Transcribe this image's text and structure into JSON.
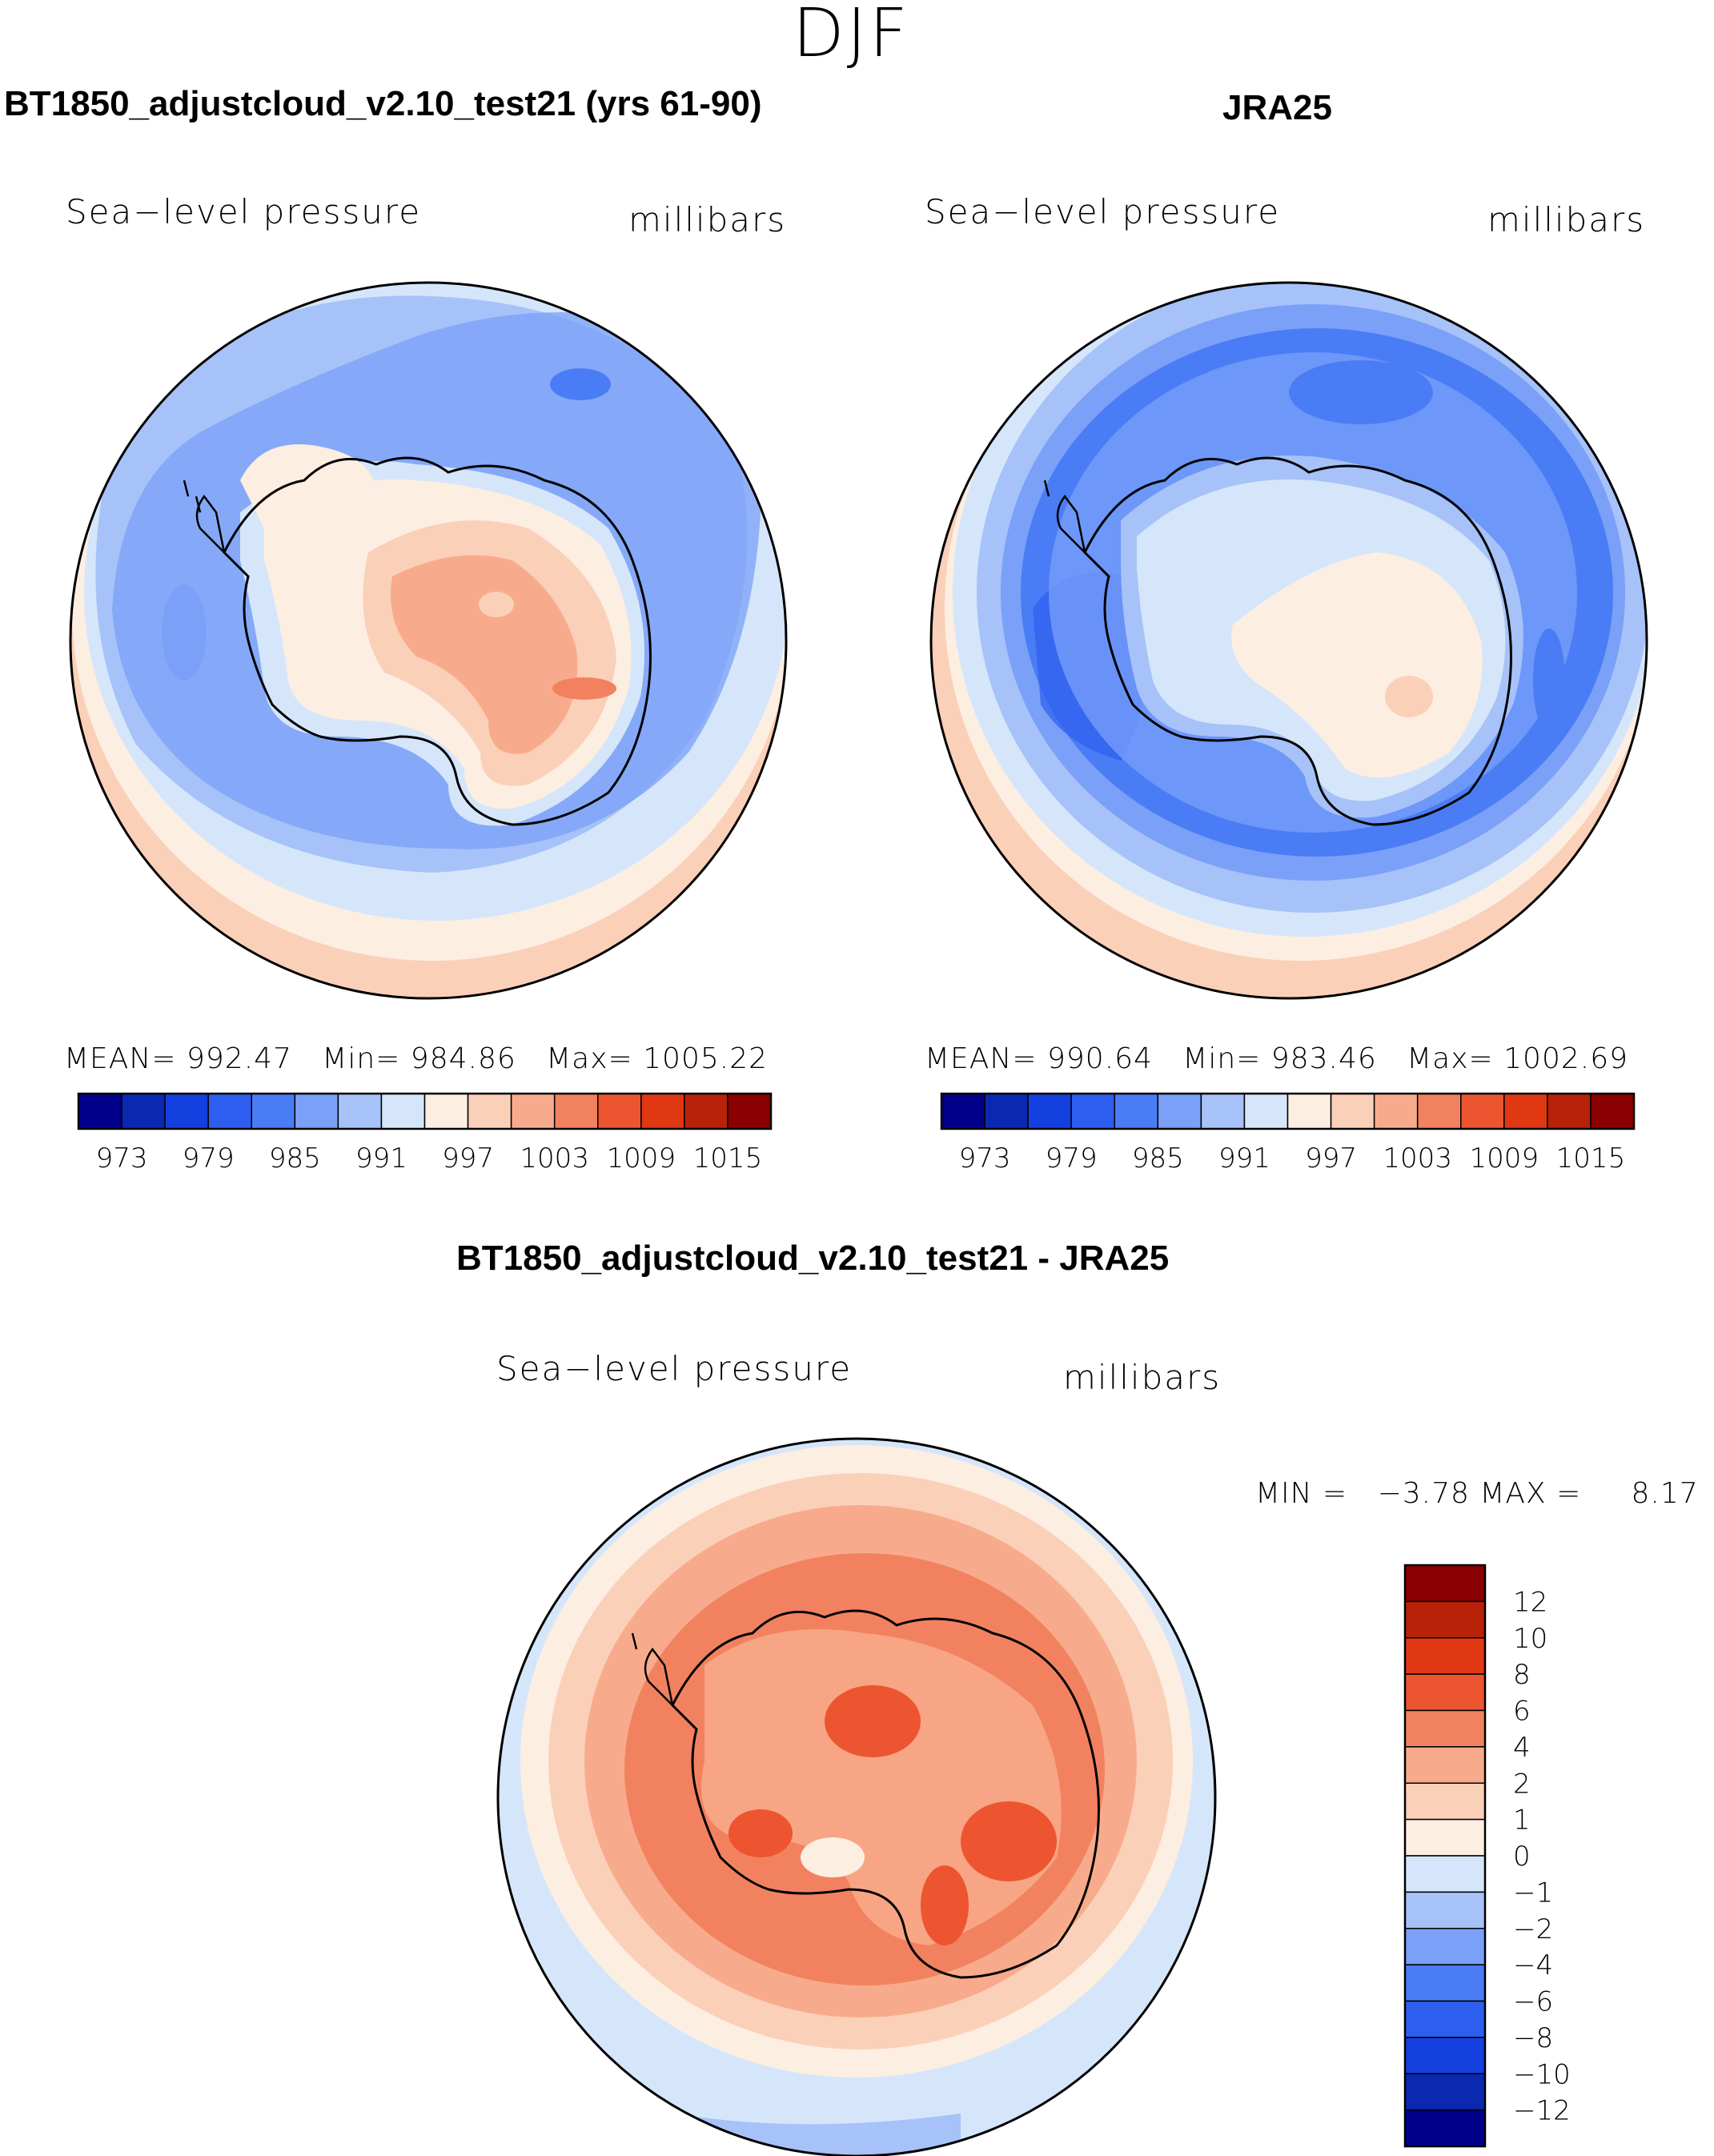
{
  "figure": {
    "season": "DJF",
    "left_panel": {
      "title": "BT1850_adjustcloud_v2.10_test21 (yrs 61-90)",
      "variable": "Sea−level pressure",
      "units": "millibars",
      "mean_label": "MEAN=",
      "mean": "992.47",
      "min_label": "Min=",
      "min": "984.86",
      "max_label": "Max=",
      "max": "1005.22"
    },
    "right_panel": {
      "title": "JRA25",
      "variable": "Sea−level pressure",
      "units": "millibars",
      "mean_label": "MEAN=",
      "mean": "990.64",
      "min_label": "Min=",
      "min": "983.46",
      "max_label": "Max=",
      "max": "1002.69"
    },
    "diff_panel": {
      "title": "BT1850_adjustcloud_v2.10_test21 - JRA25",
      "variable": "Sea−level pressure",
      "units": "millibars",
      "min_label": "MIN =",
      "min": "−3.78",
      "max_label": "MAX =",
      "max": "8.17"
    },
    "abs_colorbar": {
      "colors": [
        "#00008b",
        "#0a28b0",
        "#1440e0",
        "#2e5ef0",
        "#4a7cf5",
        "#7aa0f8",
        "#a6c2f8",
        "#d5e6fa",
        "#fdeee2",
        "#fbd0b8",
        "#f8ab8c",
        "#f2825f",
        "#ec5530",
        "#e03812",
        "#b82208",
        "#8b0000"
      ],
      "tick_labels": [
        "973",
        "979",
        "985",
        "991",
        "997",
        "1003",
        "1009",
        "1015"
      ]
    },
    "diff_colorbar": {
      "colors_top_to_bottom": [
        "#8b0000",
        "#b82208",
        "#e03812",
        "#ec5530",
        "#f2825f",
        "#f8ab8c",
        "#fbd0b8",
        "#fdeee2",
        "#d5e6fa",
        "#a6c2f8",
        "#7aa0f8",
        "#4a7cf5",
        "#2e5ef0",
        "#1440e0",
        "#0a28b0",
        "#00008b"
      ],
      "tick_labels": [
        "12",
        "10",
        "8",
        "6",
        "4",
        "2",
        "1",
        "0",
        "−1",
        "−2",
        "−4",
        "−6",
        "−8",
        "−10",
        "−12"
      ]
    }
  }
}
